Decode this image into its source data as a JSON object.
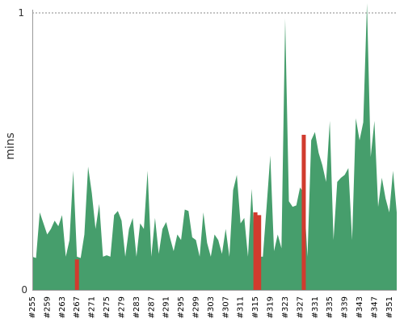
{
  "chart_data": {
    "type": "area",
    "title": "",
    "xlabel": "",
    "ylabel": "mins",
    "ylim": [
      0,
      1
    ],
    "y_ticks": [
      "0",
      "1"
    ],
    "reference_line": 1,
    "start_build": 255,
    "end_build": 353,
    "tick_labels": [
      "#255",
      "#259",
      "#263",
      "#267",
      "#271",
      "#275",
      "#279",
      "#283",
      "#287",
      "#291",
      "#295",
      "#299",
      "#303",
      "#307",
      "#311",
      "#315",
      "#319",
      "#323",
      "#327",
      "#331",
      "#335",
      "#339",
      "#343",
      "#347",
      "#351"
    ],
    "series": [
      {
        "status": "success",
        "color": "#469e6c",
        "values": [
          0.12,
          0.115,
          0.28,
          0.24,
          0.2,
          0.22,
          0.25,
          0.23,
          0.27,
          0.12,
          0.18,
          0.43,
          0.12,
          0.115,
          0.2,
          0.445,
          0.35,
          0.22,
          0.31,
          0.12,
          0.125,
          0.12,
          0.27,
          0.285,
          0.25,
          0.12,
          0.22,
          0.26,
          0.12,
          0.24,
          0.22,
          0.43,
          0.12,
          0.26,
          0.13,
          0.22,
          0.245,
          0.19,
          0.14,
          0.2,
          0.18,
          0.29,
          0.285,
          0.19,
          0.18,
          0.12,
          0.28,
          0.17,
          0.12,
          0.2,
          0.18,
          0.13,
          0.22,
          0.12,
          0.36,
          0.415,
          0.24,
          0.26,
          0.12,
          0.365,
          0.13,
          0.12,
          0.12,
          0.3,
          0.485,
          0.14,
          0.2,
          0.15,
          0.98,
          0.32,
          0.3,
          0.305,
          0.37,
          0.35,
          0.12,
          0.54,
          0.57,
          0.495,
          0.45,
          0.39,
          0.61,
          0.18,
          0.39,
          0.405,
          0.415,
          0.44,
          0.18,
          0.62,
          0.54,
          0.605,
          1.04,
          0.48,
          0.61,
          0.3,
          0.405,
          0.33,
          0.28,
          0.43,
          0.28
        ]
      },
      {
        "status": "failure",
        "color": "#d13b2e",
        "values": [
          0,
          0,
          0,
          0,
          0,
          0,
          0,
          0,
          0,
          0,
          0,
          0,
          0.11,
          0,
          0,
          0,
          0,
          0,
          0,
          0,
          0,
          0,
          0,
          0,
          0,
          0,
          0,
          0,
          0,
          0,
          0,
          0,
          0,
          0,
          0,
          0,
          0,
          0,
          0,
          0,
          0,
          0,
          0,
          0,
          0,
          0,
          0,
          0,
          0,
          0,
          0,
          0,
          0,
          0,
          0,
          0,
          0,
          0,
          0,
          0,
          0.28,
          0.27,
          0,
          0,
          0,
          0,
          0,
          0,
          0,
          0,
          0,
          0,
          0,
          0.56,
          0,
          0,
          0,
          0,
          0,
          0,
          0,
          0,
          0,
          0,
          0,
          0,
          0,
          0,
          0,
          0,
          0,
          0,
          0,
          0,
          0,
          0,
          0,
          0,
          0
        ]
      }
    ],
    "grid": false,
    "legend": "none"
  }
}
